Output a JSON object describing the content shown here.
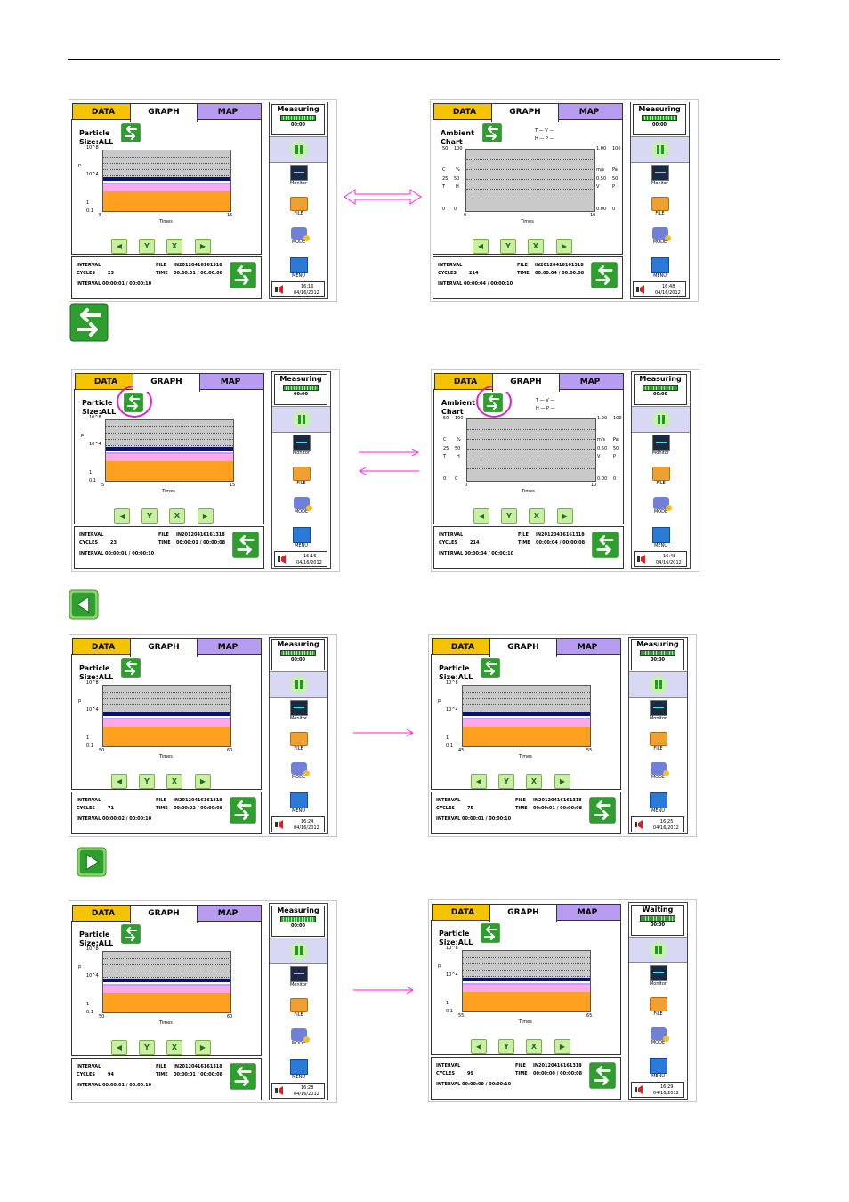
{
  "labels": {
    "tab_data": "DATA",
    "tab_graph": "GRAPH",
    "tab_map": "MAP",
    "monitor": "Monitor",
    "file": "FILE",
    "mode": "MODE",
    "menu": "MENU",
    "interval": "INTERVAL",
    "cycles": "CYCLES",
    "file_label": "FILE",
    "time_label": "TIME",
    "x_axis": "Times",
    "p_axis": "p",
    "pc_y_ticks": [
      "10^8",
      "10^4",
      "1",
      "0.1"
    ]
  },
  "colors": {
    "accent_magenta": "#ff22dd",
    "button_green": "#2e9e2e",
    "tab_data": "#f5c400",
    "tab_map": "#b89cf0",
    "plot_grey": "#c9c9c9",
    "orange": "#ffa020",
    "pink": "#ffa8e8",
    "navy": "#0a1070"
  },
  "section_icons": [
    {
      "name": "swap-graph-icon",
      "kind": "swap"
    },
    {
      "name": "scroll-left-icon",
      "kind": "left"
    },
    {
      "name": "scroll-right-icon",
      "kind": "right"
    }
  ],
  "screens": [
    {
      "id": "r1-left",
      "type": "particle",
      "title": "Particle\nSize:ALL",
      "status": "Measuring",
      "status_time": "00:00",
      "x_start": "5",
      "x_end": "15",
      "interval": "INTERVAL 00:00:01 / 00:00:10",
      "cycles": "23",
      "file": "IN20120416161318",
      "time": "00:00:01 / 00:00:08",
      "clock": "16:16",
      "date": "04/16/2012",
      "highlight": false
    },
    {
      "id": "r1-right",
      "type": "ambient",
      "title": "Ambient\nChart",
      "status": "Measuring",
      "status_time": "00:00",
      "x_start": "0",
      "x_end": "10",
      "interval": "INTERVAL 00:00:04 / 00:00:10",
      "cycles": "214",
      "file": "IN20120416161318",
      "time": "00:00:04 / 00:00:08",
      "clock": "16:48",
      "date": "04/16/2012",
      "highlight": false
    },
    {
      "id": "r2-left",
      "type": "particle",
      "title": "Particle\nSize:ALL",
      "status": "Measuring",
      "status_time": "00:00",
      "x_start": "5",
      "x_end": "15",
      "interval": "INTERVAL 00:00:01 / 00:00:10",
      "cycles": "23",
      "file": "IN20120416161318",
      "time": "00:00:01 / 00:00:08",
      "clock": "16:16",
      "date": "04/16/2012",
      "highlight": true
    },
    {
      "id": "r2-right",
      "type": "ambient",
      "title": "Ambient\nChart",
      "status": "Measuring",
      "status_time": "00:00",
      "x_start": "0",
      "x_end": "10",
      "interval": "INTERVAL 00:00:04 / 00:00:10",
      "cycles": "214",
      "file": "IN20120416161318",
      "time": "00:00:04 / 00:00:08",
      "clock": "16:48",
      "date": "04/16/2012",
      "highlight": true
    },
    {
      "id": "r3-left",
      "type": "particle",
      "title": "Particle\nSize:ALL",
      "status": "Measuring",
      "status_time": "00:00",
      "x_start": "50",
      "x_end": "60",
      "interval": "INTERVAL 00:00:02 / 00:00:10",
      "cycles": "71",
      "file": "IN20120416161318",
      "time": "00:00:02 / 00:00:08",
      "clock": "16:24",
      "date": "04/16/2012",
      "highlight": false
    },
    {
      "id": "r3-right",
      "type": "particle",
      "title": "Particle\nSize:ALL",
      "status": "Measuring",
      "status_time": "00:00",
      "x_start": "45",
      "x_end": "55",
      "interval": "INTERVAL 00:00:01 / 00:00:10",
      "cycles": "75",
      "file": "IN20120416161318",
      "time": "00:00:01 / 00:00:08",
      "clock": "16:25",
      "date": "04/16/2012",
      "highlight": false
    },
    {
      "id": "r4-left",
      "type": "particle",
      "title": "Particle\nSize:ALL",
      "status": "Measuring",
      "status_time": "00:00",
      "x_start": "50",
      "x_end": "60",
      "interval": "INTERVAL 00:00:01 / 00:00:10",
      "cycles": "94",
      "file": "IN20120416161318",
      "time": "00:00:01 / 00:00:08",
      "clock": "16:28",
      "date": "04/16/2012",
      "highlight": false
    },
    {
      "id": "r4-right",
      "type": "particle",
      "title": "Particle\nSize:ALL",
      "status": "Waiting",
      "status_time": "00:00",
      "x_start": "55",
      "x_end": "65",
      "interval": "INTERVAL 00:00:09 / 00:00:10",
      "cycles": "99",
      "file": "IN20120416161318",
      "time": "00:00:00 / 00:00:08",
      "clock": "16:29",
      "date": "04/16/2012",
      "highlight": false
    }
  ],
  "ambient": {
    "left_ticks": [
      "50",
      "25",
      "0"
    ],
    "left_ticks2": [
      "100",
      "50",
      "0"
    ],
    "right_ticks": [
      "1.00",
      "0.50",
      "0.00"
    ],
    "right_ticks2": [
      "100",
      "50",
      "0"
    ],
    "left_units": [
      "C",
      "%",
      "T",
      "H"
    ],
    "right_units": [
      "m/s",
      "Pa",
      "V",
      "P"
    ],
    "legend_row1": "T — V —",
    "legend_row2": "H — P —"
  }
}
